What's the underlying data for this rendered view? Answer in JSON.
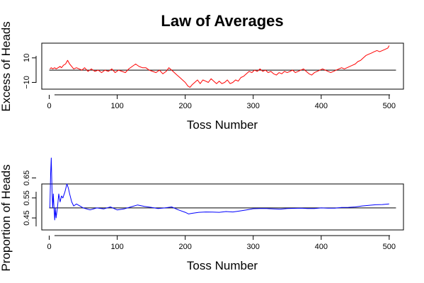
{
  "chart_data": {
    "title": "Law of Averages",
    "panels": [
      {
        "type": "line",
        "xlabel": "Toss Number",
        "ylabel": "Excess of Heads",
        "xlim": [
          -11,
          521
        ],
        "ylim": [
          -15.5,
          22
        ],
        "xticks": [
          0,
          100,
          200,
          300,
          400,
          500
        ],
        "yticks": [
          -10,
          10
        ],
        "reference_line": 0,
        "color": "#ff0000",
        "points": [
          [
            1,
            1
          ],
          [
            3,
            2
          ],
          [
            5,
            1
          ],
          [
            8,
            2
          ],
          [
            10,
            1
          ],
          [
            13,
            2
          ],
          [
            16,
            3
          ],
          [
            18,
            2
          ],
          [
            21,
            4
          ],
          [
            24,
            5
          ],
          [
            27,
            8
          ],
          [
            30,
            5
          ],
          [
            33,
            3
          ],
          [
            36,
            1
          ],
          [
            40,
            2
          ],
          [
            44,
            1
          ],
          [
            48,
            0
          ],
          [
            52,
            2
          ],
          [
            57,
            -1
          ],
          [
            62,
            1
          ],
          [
            67,
            -1
          ],
          [
            72,
            0
          ],
          [
            77,
            -2
          ],
          [
            82,
            0
          ],
          [
            87,
            -1
          ],
          [
            92,
            1
          ],
          [
            97,
            -2
          ],
          [
            102,
            0
          ],
          [
            107,
            -1
          ],
          [
            112,
            -2
          ],
          [
            117,
            1
          ],
          [
            122,
            3
          ],
          [
            127,
            5
          ],
          [
            132,
            3
          ],
          [
            137,
            2
          ],
          [
            142,
            2
          ],
          [
            147,
            0
          ],
          [
            152,
            -1
          ],
          [
            157,
            -2
          ],
          [
            162,
            0
          ],
          [
            167,
            -3
          ],
          [
            172,
            -1
          ],
          [
            176,
            2
          ],
          [
            180,
            0
          ],
          [
            184,
            -2
          ],
          [
            188,
            -4
          ],
          [
            192,
            -6
          ],
          [
            196,
            -8
          ],
          [
            200,
            -10
          ],
          [
            204,
            -13
          ],
          [
            207,
            -14
          ],
          [
            210,
            -12
          ],
          [
            214,
            -10
          ],
          [
            218,
            -8
          ],
          [
            222,
            -11
          ],
          [
            226,
            -8
          ],
          [
            230,
            -9
          ],
          [
            234,
            -10
          ],
          [
            238,
            -7
          ],
          [
            242,
            -9
          ],
          [
            246,
            -11
          ],
          [
            250,
            -9
          ],
          [
            254,
            -11
          ],
          [
            258,
            -10
          ],
          [
            262,
            -8
          ],
          [
            266,
            -11
          ],
          [
            270,
            -10
          ],
          [
            274,
            -8
          ],
          [
            278,
            -9
          ],
          [
            282,
            -6
          ],
          [
            286,
            -5
          ],
          [
            290,
            -3
          ],
          [
            294,
            -1
          ],
          [
            298,
            -2
          ],
          [
            302,
            0
          ],
          [
            306,
            -1
          ],
          [
            310,
            1
          ],
          [
            314,
            -1
          ],
          [
            318,
            0
          ],
          [
            322,
            -2
          ],
          [
            326,
            -1
          ],
          [
            330,
            -3
          ],
          [
            334,
            -4
          ],
          [
            338,
            -2
          ],
          [
            342,
            -3
          ],
          [
            346,
            -1
          ],
          [
            350,
            -2
          ],
          [
            354,
            -1
          ],
          [
            358,
            0
          ],
          [
            362,
            -2
          ],
          [
            366,
            -1
          ],
          [
            370,
            0
          ],
          [
            374,
            1
          ],
          [
            378,
            -1
          ],
          [
            382,
            -3
          ],
          [
            386,
            -4
          ],
          [
            390,
            -2
          ],
          [
            394,
            -1
          ],
          [
            398,
            0
          ],
          [
            402,
            1
          ],
          [
            406,
            0
          ],
          [
            410,
            -1
          ],
          [
            414,
            -2
          ],
          [
            418,
            -1
          ],
          [
            422,
            0
          ],
          [
            426,
            1
          ],
          [
            430,
            2
          ],
          [
            434,
            1
          ],
          [
            438,
            2
          ],
          [
            442,
            3
          ],
          [
            446,
            4
          ],
          [
            450,
            5
          ],
          [
            454,
            7
          ],
          [
            458,
            8
          ],
          [
            462,
            10
          ],
          [
            466,
            12
          ],
          [
            470,
            13
          ],
          [
            474,
            14
          ],
          [
            478,
            15
          ],
          [
            482,
            16
          ],
          [
            486,
            15
          ],
          [
            490,
            16
          ],
          [
            494,
            17
          ],
          [
            498,
            18
          ],
          [
            500,
            20
          ]
        ]
      },
      {
        "type": "line",
        "xlabel": "Toss Number",
        "ylabel": "Proportion of Heads",
        "xlim": [
          -11,
          521
        ],
        "ylim": [
          0.39,
          0.62
        ],
        "xticks": [
          0,
          100,
          200,
          300,
          400,
          500
        ],
        "yticks": [
          0.45,
          0.55,
          0.65
        ],
        "reference_line": 0.5,
        "color": "#0000ff",
        "points": [
          [
            1,
            0.5
          ],
          [
            2,
            0.67
          ],
          [
            3,
            0.75
          ],
          [
            4,
            0.6
          ],
          [
            5,
            0.5
          ],
          [
            6,
            0.57
          ],
          [
            7,
            0.5
          ],
          [
            8,
            0.44
          ],
          [
            9,
            0.5
          ],
          [
            10,
            0.45
          ],
          [
            12,
            0.5
          ],
          [
            14,
            0.57
          ],
          [
            16,
            0.53
          ],
          [
            18,
            0.56
          ],
          [
            20,
            0.55
          ],
          [
            23,
            0.58
          ],
          [
            26,
            0.62
          ],
          [
            28,
            0.6
          ],
          [
            30,
            0.57
          ],
          [
            33,
            0.53
          ],
          [
            36,
            0.51
          ],
          [
            40,
            0.52
          ],
          [
            45,
            0.51
          ],
          [
            50,
            0.5
          ],
          [
            60,
            0.49
          ],
          [
            70,
            0.5
          ],
          [
            80,
            0.495
          ],
          [
            90,
            0.505
          ],
          [
            100,
            0.49
          ],
          [
            110,
            0.495
          ],
          [
            120,
            0.505
          ],
          [
            130,
            0.515
          ],
          [
            140,
            0.508
          ],
          [
            150,
            0.503
          ],
          [
            160,
            0.497
          ],
          [
            170,
            0.5
          ],
          [
            180,
            0.505
          ],
          [
            190,
            0.49
          ],
          [
            200,
            0.478
          ],
          [
            205,
            0.47
          ],
          [
            210,
            0.473
          ],
          [
            220,
            0.478
          ],
          [
            230,
            0.48
          ],
          [
            240,
            0.479
          ],
          [
            250,
            0.478
          ],
          [
            260,
            0.482
          ],
          [
            270,
            0.48
          ],
          [
            280,
            0.485
          ],
          [
            290,
            0.49
          ],
          [
            300,
            0.496
          ],
          [
            310,
            0.497
          ],
          [
            320,
            0.497
          ],
          [
            330,
            0.495
          ],
          [
            340,
            0.494
          ],
          [
            350,
            0.497
          ],
          [
            360,
            0.498
          ],
          [
            370,
            0.499
          ],
          [
            380,
            0.497
          ],
          [
            390,
            0.497
          ],
          [
            400,
            0.5
          ],
          [
            410,
            0.499
          ],
          [
            420,
            0.499
          ],
          [
            430,
            0.502
          ],
          [
            440,
            0.503
          ],
          [
            450,
            0.505
          ],
          [
            460,
            0.51
          ],
          [
            470,
            0.513
          ],
          [
            480,
            0.516
          ],
          [
            490,
            0.517
          ],
          [
            500,
            0.52
          ]
        ]
      }
    ]
  }
}
